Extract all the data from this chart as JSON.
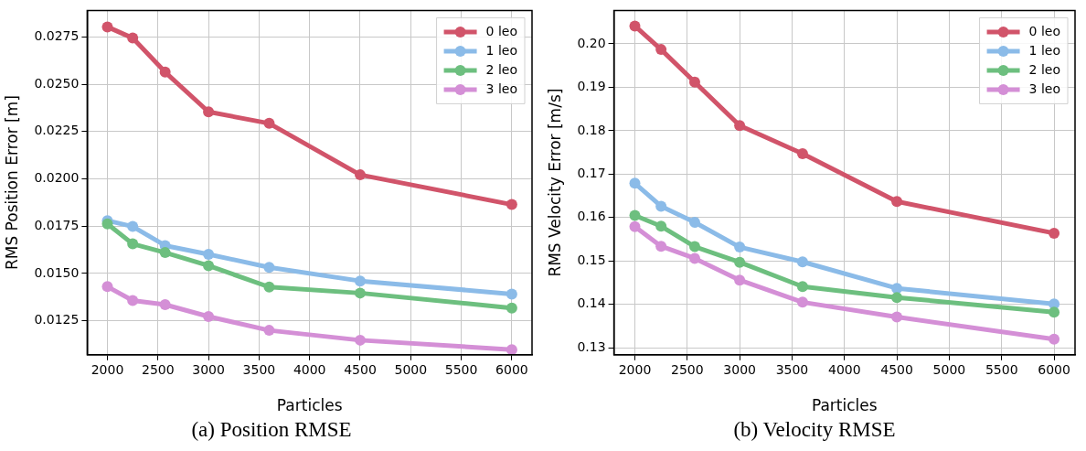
{
  "chart_data": [
    {
      "type": "line",
      "xlabel": "Particles",
      "ylabel": "RMS Position Error [m]",
      "annotations": [
        "(a) Position RMSE"
      ],
      "x": [
        2000,
        2250,
        2571,
        3000,
        3600,
        4500,
        6000
      ],
      "xlim": [
        1800,
        6200
      ],
      "xticks": [
        2000,
        2500,
        3000,
        3500,
        4000,
        4500,
        5000,
        5500,
        6000
      ],
      "ylim": [
        0.0107,
        0.0289
      ],
      "yticks": [
        0.0125,
        {
          "value": 0.015,
          "label": "0.0150"
        },
        0.0175,
        {
          "value": 0.02,
          "label": "0.0200"
        },
        0.0225,
        {
          "value": 0.025,
          "label": "0.0250"
        },
        0.0275
      ],
      "grid": true,
      "legend": "top right",
      "marker": "circle",
      "line_style": "solid",
      "series": [
        {
          "name": "0 leo",
          "color": "#d1546a",
          "values": [
            0.02803,
            0.02744,
            0.02564,
            0.02354,
            0.02293,
            0.02021,
            0.01864
          ]
        },
        {
          "name": "1 leo",
          "color": "#8bbbe8",
          "values": [
            0.01779,
            0.01748,
            0.01647,
            0.01601,
            0.01532,
            0.0146,
            0.01391
          ]
        },
        {
          "name": "2 leo",
          "color": "#6dbf7f",
          "values": [
            0.01762,
            0.01656,
            0.0161,
            0.01541,
            0.01428,
            0.01396,
            0.01317
          ]
        },
        {
          "name": "3 leo",
          "color": "#d48fd6",
          "values": [
            0.0143,
            0.01357,
            0.01335,
            0.01272,
            0.01199,
            0.01147,
            0.01097
          ]
        }
      ]
    },
    {
      "type": "line",
      "xlabel": "Particles",
      "ylabel": "RMS Velocity Error [m/s]",
      "annotations": [
        "(b) Velocity RMSE"
      ],
      "x": [
        2000,
        2250,
        2571,
        3000,
        3600,
        4500,
        6000
      ],
      "xlim": [
        1800,
        6200
      ],
      "xticks": [
        2000,
        2500,
        3000,
        3500,
        4000,
        4500,
        5000,
        5500,
        6000
      ],
      "ylim": [
        0.1284,
        0.2077
      ],
      "yticks": [
        0.13,
        0.14,
        0.15,
        0.16,
        0.17,
        0.18,
        0.19,
        {
          "value": 0.2,
          "label": "0.20"
        }
      ],
      "grid": true,
      "legend": "top right",
      "marker": "circle",
      "line_style": "solid",
      "series": [
        {
          "name": "0 leo",
          "color": "#d1546a",
          "values": [
            0.2041,
            0.1987,
            0.1912,
            0.1812,
            0.1747,
            0.1637,
            0.1564
          ]
        },
        {
          "name": "1 leo",
          "color": "#8bbbe8",
          "values": [
            0.1679,
            0.1626,
            0.1589,
            0.1532,
            0.1498,
            0.1437,
            0.1401
          ]
        },
        {
          "name": "2 leo",
          "color": "#6dbf7f",
          "values": [
            0.1605,
            0.158,
            0.1533,
            0.1497,
            0.1441,
            0.1416,
            0.1382
          ]
        },
        {
          "name": "3 leo",
          "color": "#d48fd6",
          "values": [
            0.1579,
            0.1534,
            0.1506,
            0.1456,
            0.1405,
            0.1371,
            0.132
          ]
        }
      ]
    }
  ]
}
